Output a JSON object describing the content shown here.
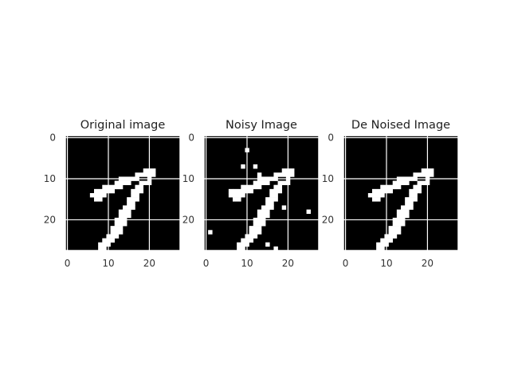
{
  "chart_data": [
    {
      "type": "heatmap",
      "title": "Original image",
      "xticks": [
        "0",
        "10",
        "20"
      ],
      "yticks": [
        "0",
        "10",
        "20"
      ],
      "xlim": [
        -0.5,
        27.5
      ],
      "ylim": [
        27.5,
        -0.5
      ],
      "grid": true,
      "colormap": "gray",
      "values": [
        0,
        1
      ],
      "pixels": [
        [
          8,
          19,
          22
        ],
        [
          9,
          17,
          22
        ],
        [
          10,
          13,
          18
        ],
        [
          10,
          20,
          21
        ],
        [
          11,
          12,
          16
        ],
        [
          11,
          18,
          21
        ],
        [
          12,
          9,
          14
        ],
        [
          12,
          17,
          19
        ],
        [
          13,
          7,
          12
        ],
        [
          13,
          16,
          19
        ],
        [
          14,
          6,
          10
        ],
        [
          14,
          16,
          18
        ],
        [
          15,
          7,
          9
        ],
        [
          15,
          15,
          18
        ],
        [
          16,
          15,
          17
        ],
        [
          17,
          14,
          17
        ],
        [
          18,
          13,
          16
        ],
        [
          19,
          13,
          16
        ],
        [
          20,
          12,
          15
        ],
        [
          21,
          12,
          15
        ],
        [
          22,
          11,
          14
        ],
        [
          23,
          11,
          14
        ],
        [
          24,
          10,
          13
        ],
        [
          25,
          9,
          12
        ],
        [
          26,
          8,
          11
        ],
        [
          27,
          8,
          10
        ]
      ]
    },
    {
      "type": "heatmap",
      "title": "Noisy Image",
      "xticks": [
        "0",
        "10",
        "20"
      ],
      "yticks": [
        "0",
        "10",
        "20"
      ],
      "xlim": [
        -0.5,
        27.5
      ],
      "ylim": [
        27.5,
        -0.5
      ],
      "grid": true,
      "colormap": "gray",
      "values": [
        0,
        1
      ],
      "pixels": [
        [
          8,
          19,
          22
        ],
        [
          9,
          17,
          22
        ],
        [
          10,
          13,
          18
        ],
        [
          10,
          20,
          21
        ],
        [
          11,
          12,
          16
        ],
        [
          11,
          18,
          21
        ],
        [
          12,
          9,
          14
        ],
        [
          12,
          17,
          19
        ],
        [
          13,
          7,
          12
        ],
        [
          13,
          16,
          19
        ],
        [
          14,
          6,
          10
        ],
        [
          14,
          16,
          18
        ],
        [
          15,
          7,
          9
        ],
        [
          15,
          15,
          18
        ],
        [
          16,
          15,
          17
        ],
        [
          17,
          14,
          17
        ],
        [
          18,
          13,
          16
        ],
        [
          19,
          13,
          16
        ],
        [
          20,
          12,
          15
        ],
        [
          21,
          12,
          15
        ],
        [
          22,
          11,
          14
        ],
        [
          23,
          11,
          14
        ],
        [
          24,
          10,
          13
        ],
        [
          25,
          9,
          12
        ],
        [
          26,
          8,
          11
        ],
        [
          27,
          8,
          10
        ],
        [
          3,
          10,
          11
        ],
        [
          7,
          9,
          10
        ],
        [
          7,
          12,
          13
        ],
        [
          9,
          13,
          14
        ],
        [
          13,
          6,
          7
        ],
        [
          17,
          19,
          20
        ],
        [
          18,
          25,
          26
        ],
        [
          23,
          1,
          2
        ],
        [
          26,
          15,
          16
        ],
        [
          27,
          17,
          18
        ]
      ]
    },
    {
      "type": "heatmap",
      "title": "De Noised Image",
      "xticks": [
        "0",
        "10",
        "20"
      ],
      "yticks": [
        "0",
        "10",
        "20"
      ],
      "xlim": [
        -0.5,
        27.5
      ],
      "ylim": [
        27.5,
        -0.5
      ],
      "grid": true,
      "colormap": "gray",
      "values": [
        0,
        1
      ],
      "pixels": [
        [
          8,
          19,
          22
        ],
        [
          9,
          17,
          22
        ],
        [
          10,
          13,
          18
        ],
        [
          10,
          20,
          21
        ],
        [
          11,
          12,
          16
        ],
        [
          11,
          18,
          21
        ],
        [
          12,
          9,
          14
        ],
        [
          12,
          17,
          19
        ],
        [
          13,
          7,
          12
        ],
        [
          13,
          16,
          19
        ],
        [
          14,
          6,
          10
        ],
        [
          14,
          16,
          18
        ],
        [
          15,
          7,
          9
        ],
        [
          15,
          15,
          18
        ],
        [
          16,
          15,
          17
        ],
        [
          17,
          14,
          17
        ],
        [
          18,
          13,
          16
        ],
        [
          19,
          13,
          16
        ],
        [
          20,
          12,
          15
        ],
        [
          21,
          12,
          15
        ],
        [
          22,
          11,
          14
        ],
        [
          23,
          11,
          14
        ],
        [
          24,
          10,
          13
        ],
        [
          25,
          9,
          12
        ],
        [
          26,
          8,
          11
        ],
        [
          27,
          8,
          10
        ]
      ]
    }
  ],
  "colors": {
    "background": "#ffffff",
    "image_off": "#000000",
    "image_on": "#ffffff",
    "gridline": "#ffffff",
    "text": "#222222"
  }
}
